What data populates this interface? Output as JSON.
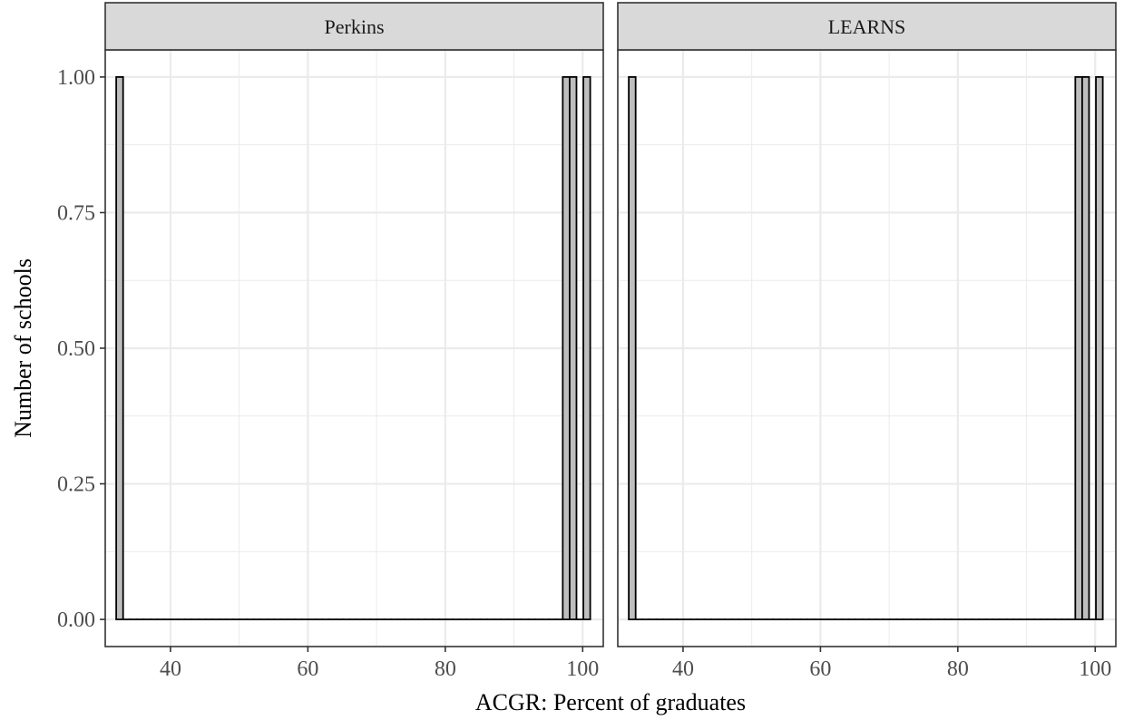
{
  "chart_data": {
    "type": "bar",
    "xlabel": "ACGR: Percent of graduates",
    "ylabel": "Number of schools",
    "xlim": [
      30.5,
      103
    ],
    "ylim": [
      -0.05,
      1.05
    ],
    "x_ticks": [
      40,
      60,
      80,
      100
    ],
    "y_ticks": [
      0,
      0.25,
      0.5,
      0.75,
      1
    ],
    "y_tick_labels": [
      "0.00",
      "0.25",
      "0.50",
      "0.75",
      "1.00"
    ],
    "grid": true,
    "bin_width": 1,
    "bin_range": [
      32.1,
      100.6
    ],
    "panels": [
      {
        "name": "Perkins",
        "bars": [
          {
            "x": 32.6,
            "value": 1
          },
          {
            "x": 97.1,
            "value": 1
          },
          {
            "x": 98.1,
            "value": 1
          },
          {
            "x": 100.1,
            "value": 1
          }
        ]
      },
      {
        "name": "LEARNS",
        "bars": [
          {
            "x": 32.6,
            "value": 1
          },
          {
            "x": 97.1,
            "value": 1
          },
          {
            "x": 98.1,
            "value": 1
          },
          {
            "x": 100.1,
            "value": 1
          }
        ]
      }
    ],
    "colors": {
      "bar_fill": "#bebebe",
      "bar_stroke": "#000000",
      "strip_fill": "#d9d9d9",
      "grid": "#ebebeb",
      "panel_border": "#333333"
    }
  }
}
